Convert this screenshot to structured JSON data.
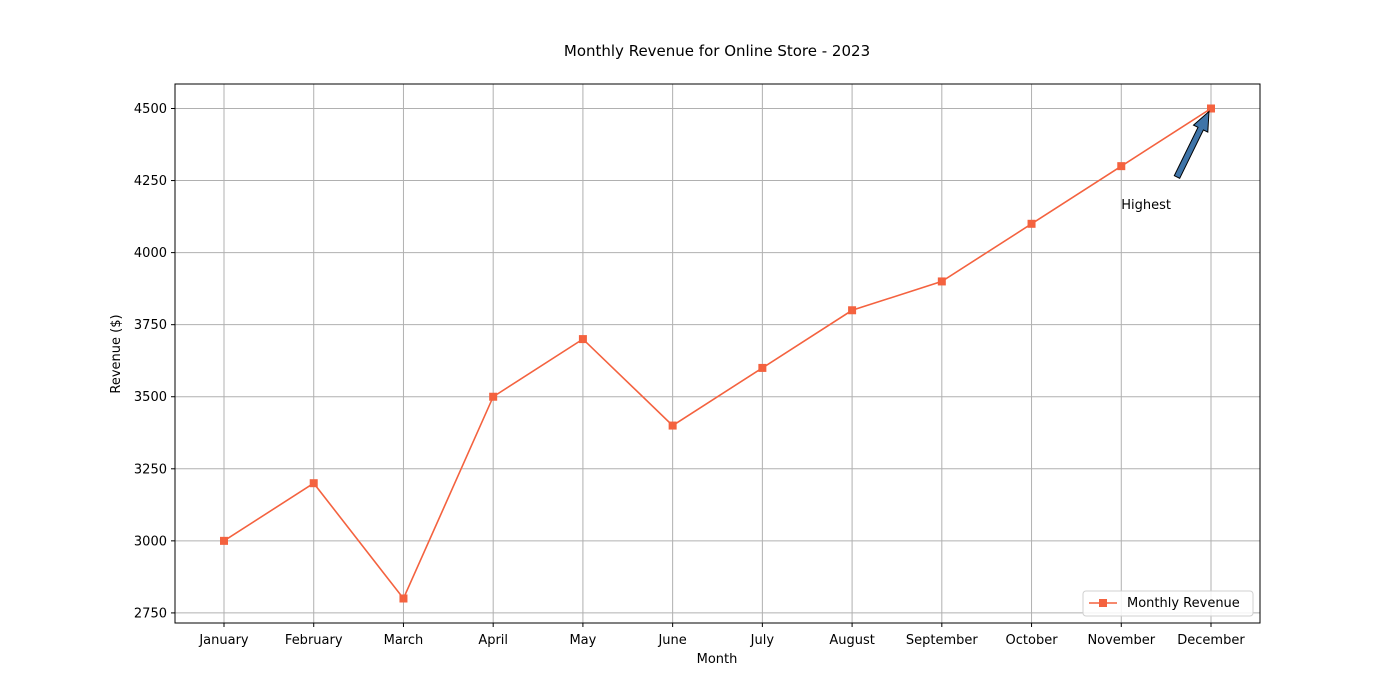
{
  "chart_data": {
    "type": "line",
    "title": "Monthly Revenue for Online Store - 2023",
    "xlabel": "Month",
    "ylabel": "Revenue ($)",
    "categories": [
      "January",
      "February",
      "March",
      "April",
      "May",
      "June",
      "July",
      "August",
      "September",
      "October",
      "November",
      "December"
    ],
    "series": [
      {
        "name": "Monthly Revenue",
        "values": [
          3000,
          3200,
          2800,
          3500,
          3700,
          3400,
          3600,
          3800,
          3900,
          4100,
          4300,
          4500
        ],
        "color": "#f4623f",
        "marker": "square"
      }
    ],
    "yticks": [
      2750,
      3000,
      3250,
      3500,
      3750,
      4000,
      4250,
      4500
    ],
    "ylim": [
      2715,
      4585
    ],
    "grid": true,
    "legend_position": "lower-right",
    "annotation": {
      "text": "Highest",
      "target_category": "December",
      "target_value": 4500,
      "text_category": "November",
      "text_value": 4200,
      "arrow_color": "#3f74a8"
    }
  }
}
